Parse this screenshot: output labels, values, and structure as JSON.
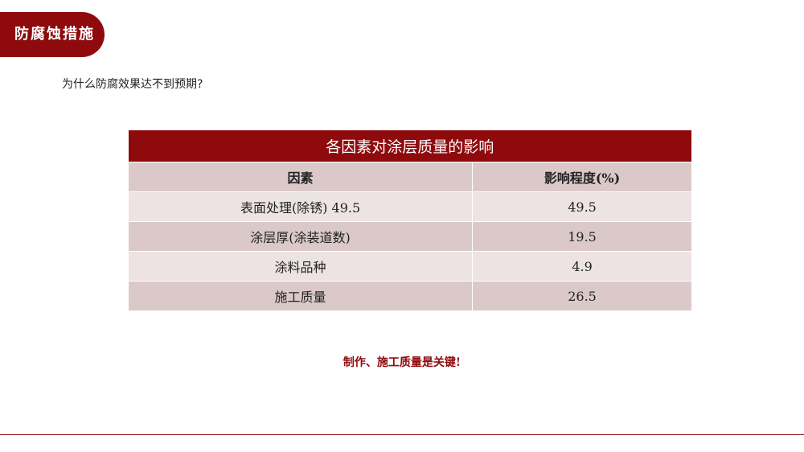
{
  "header": {
    "title": "防腐蚀措施"
  },
  "question": "为什么防腐效果达不到预期?",
  "table": {
    "title": "各因素对涂层质量的影响",
    "headers": [
      "因素",
      "影响程度(%)"
    ],
    "rows": [
      [
        "表面处理(除锈) 49.5",
        "49.5"
      ],
      [
        "涂层厚(涂装道数)",
        "19.5"
      ],
      [
        "涂料品种",
        "4.9"
      ],
      [
        "施工质量",
        "26.5"
      ]
    ]
  },
  "conclusion": "制作、施工质量是关键!",
  "colors": {
    "accent": "#8e0a0d"
  }
}
